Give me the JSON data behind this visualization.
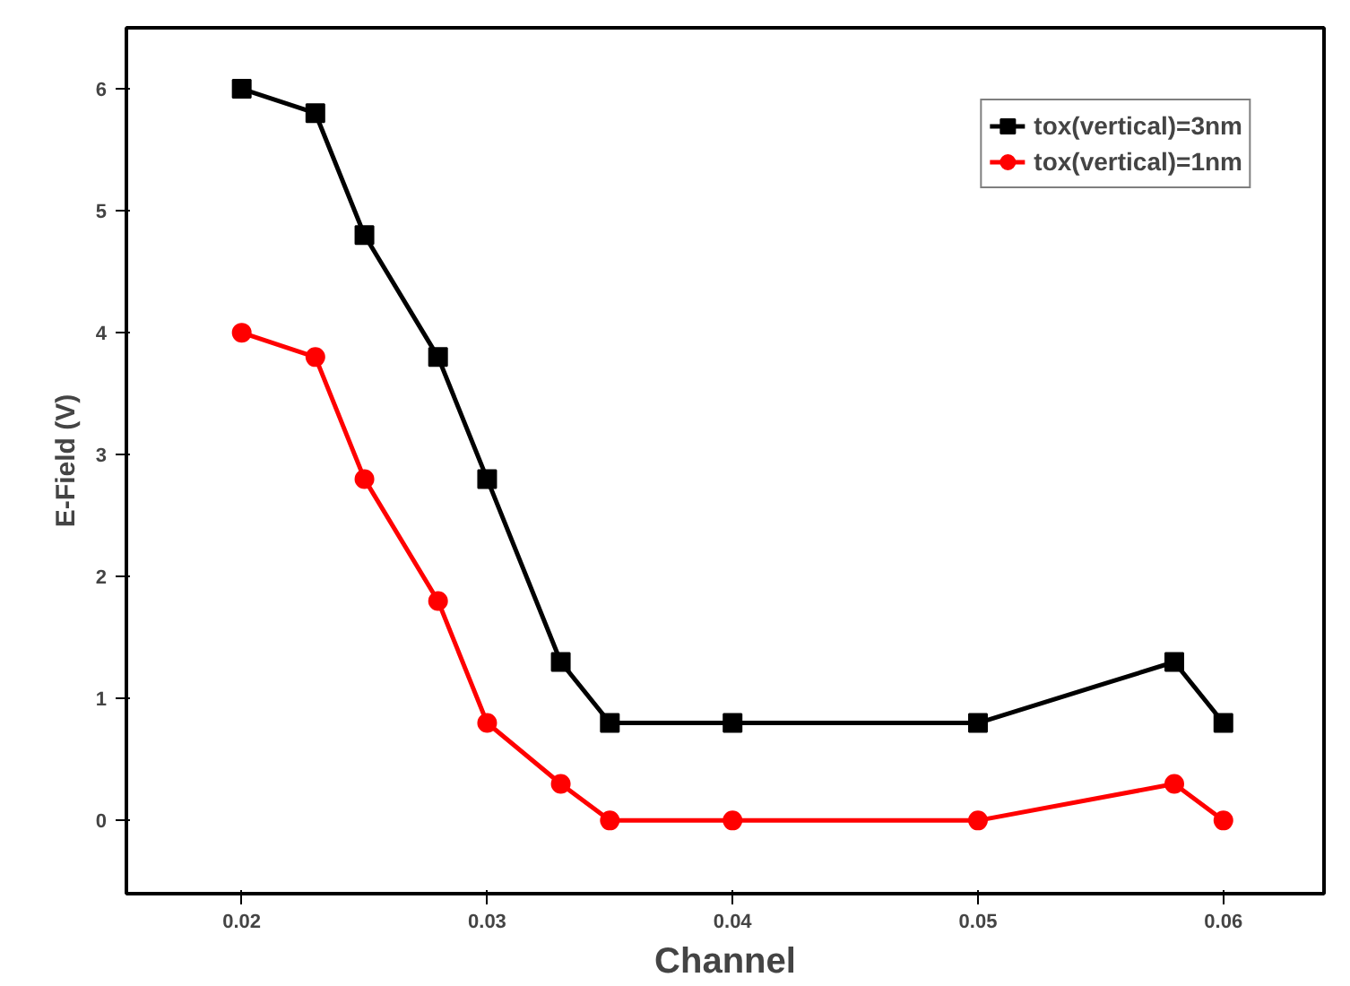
{
  "chart_data": {
    "type": "line",
    "xlabel": "Channel",
    "ylabel": "E-Field (V)",
    "x": [
      0.02,
      0.023,
      0.025,
      0.028,
      0.03,
      0.033,
      0.035,
      0.04,
      0.05,
      0.058,
      0.06
    ],
    "series": [
      {
        "name": "tox(vertical)=3nm",
        "color": "#000000",
        "marker": "square",
        "values": [
          6,
          5.8,
          4.8,
          3.8,
          2.8,
          1.3,
          0.8,
          0.8,
          0.8,
          1.3,
          0.8
        ]
      },
      {
        "name": "tox(vertical)=1nm",
        "color": "#ff0000",
        "marker": "circle",
        "values": [
          4,
          3.8,
          2.8,
          1.8,
          0.8,
          0.3,
          0,
          0,
          0,
          0.3,
          0
        ]
      }
    ],
    "xlim": [
      0.0153,
      0.0641
    ],
    "ylim": [
      -0.6,
      6.5
    ],
    "xticks": [
      0.02,
      0.03,
      0.04,
      0.05,
      0.06
    ],
    "yticks": [
      0,
      1,
      2,
      3,
      4,
      5,
      6
    ],
    "grid": false,
    "legend": "top right",
    "line_style": "solid"
  }
}
